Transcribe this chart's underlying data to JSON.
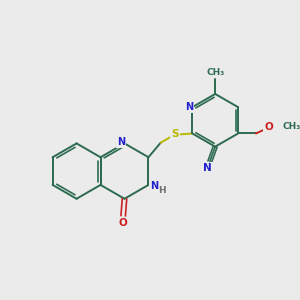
{
  "background_color": "#ebebeb",
  "bond_color": "#2d6b50",
  "n_color": "#2020cc",
  "o_color": "#cc2020",
  "s_color": "#b8b800",
  "h_color": "#707070",
  "figsize": [
    3.0,
    3.0
  ],
  "dpi": 100,
  "xlim": [
    0,
    10
  ],
  "ylim": [
    0,
    10
  ]
}
